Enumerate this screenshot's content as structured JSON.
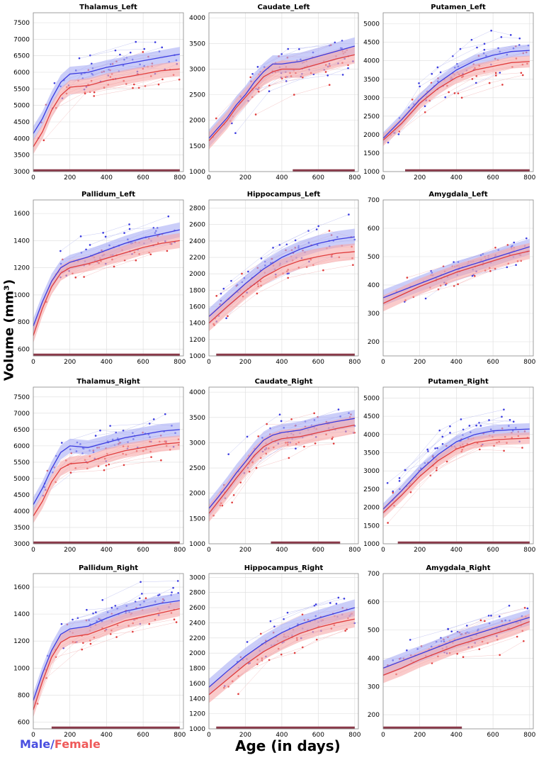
{
  "figure": {
    "ylabel": "Volume (mm³)",
    "xlabel": "Age (in days)",
    "legend": {
      "male": "Male",
      "sep": "/",
      "female": "Female"
    }
  },
  "colors": {
    "male": "#3b3be0",
    "male_band": "#a9aef5",
    "female": "#e03c3c",
    "female_band": "#f7a8a8",
    "significance_bar": "#8a3a4a",
    "grid": "#dcdcdc",
    "axis": "#888888"
  },
  "chart_data": [
    {
      "type": "line",
      "title": "Thalamus_Left",
      "xlim": [
        0,
        820
      ],
      "ylim": [
        3000,
        7800
      ],
      "xticks": [
        0,
        200,
        400,
        600,
        800
      ],
      "yticks": [
        3000,
        3500,
        4000,
        4500,
        5000,
        5500,
        6000,
        6500,
        7000,
        7500
      ],
      "x": [
        0,
        50,
        100,
        150,
        200,
        300,
        400,
        500,
        600,
        700,
        800
      ],
      "series": [
        {
          "name": "Male",
          "values": [
            4150,
            4600,
            5200,
            5700,
            5950,
            6000,
            6150,
            6250,
            6350,
            6450,
            6550
          ],
          "band": 220
        },
        {
          "name": "Female",
          "values": [
            3750,
            4200,
            4850,
            5300,
            5550,
            5600,
            5750,
            5850,
            5950,
            6050,
            6100
          ],
          "band": 220
        }
      ],
      "significance": [
        0,
        800
      ],
      "seed": 11
    },
    {
      "type": "line",
      "title": "Caudate_Left",
      "xlim": [
        0,
        820
      ],
      "ylim": [
        1000,
        4100
      ],
      "xticks": [
        0,
        200,
        400,
        600,
        800
      ],
      "yticks": [
        1000,
        1500,
        2000,
        2500,
        3000,
        3500,
        4000
      ],
      "x": [
        0,
        50,
        100,
        150,
        200,
        250,
        300,
        350,
        400,
        500,
        600,
        700,
        800
      ],
      "series": [
        {
          "name": "Male",
          "values": [
            1650,
            1850,
            2050,
            2300,
            2500,
            2750,
            2950,
            3100,
            3100,
            3150,
            3250,
            3350,
            3450
          ],
          "band": 170
        },
        {
          "name": "Female",
          "values": [
            1600,
            1800,
            2000,
            2250,
            2450,
            2650,
            2850,
            2950,
            3000,
            3000,
            3100,
            3200,
            3280
          ],
          "band": 170
        }
      ],
      "significance": [
        460,
        800
      ],
      "seed": 23
    },
    {
      "type": "line",
      "title": "Putamen_Left",
      "xlim": [
        0,
        820
      ],
      "ylim": [
        1000,
        5300
      ],
      "xticks": [
        0,
        200,
        400,
        600,
        800
      ],
      "yticks": [
        1000,
        1500,
        2000,
        2500,
        3000,
        3500,
        4000,
        4500,
        5000
      ],
      "x": [
        0,
        100,
        200,
        300,
        400,
        500,
        600,
        700,
        800
      ],
      "series": [
        {
          "name": "Male",
          "values": [
            1900,
            2400,
            2950,
            3400,
            3750,
            4000,
            4150,
            4250,
            4280
          ],
          "band": 160
        },
        {
          "name": "Female",
          "values": [
            1850,
            2300,
            2850,
            3250,
            3550,
            3750,
            3850,
            3950,
            3980
          ],
          "band": 160
        }
      ],
      "significance": [
        120,
        800
      ],
      "seed": 37
    },
    {
      "type": "line",
      "title": "Pallidum_Left",
      "xlim": [
        0,
        820
      ],
      "ylim": [
        550,
        1700
      ],
      "xticks": [
        0,
        200,
        400,
        600,
        800
      ],
      "yticks": [
        600,
        800,
        1000,
        1200,
        1400,
        1600
      ],
      "x": [
        0,
        50,
        100,
        150,
        200,
        300,
        400,
        500,
        600,
        700,
        800
      ],
      "series": [
        {
          "name": "Male",
          "values": [
            770,
            950,
            1100,
            1200,
            1240,
            1280,
            1330,
            1380,
            1420,
            1450,
            1480
          ],
          "band": 55
        },
        {
          "name": "Female",
          "values": [
            700,
            900,
            1060,
            1160,
            1200,
            1230,
            1270,
            1310,
            1350,
            1380,
            1400
          ],
          "band": 55
        }
      ],
      "significance": [
        0,
        800
      ],
      "seed": 41
    },
    {
      "type": "line",
      "title": "Hippocampus_Left",
      "xlim": [
        0,
        820
      ],
      "ylim": [
        1000,
        2900
      ],
      "xticks": [
        0,
        200,
        400,
        600,
        800
      ],
      "yticks": [
        1000,
        1200,
        1400,
        1600,
        1800,
        2000,
        2200,
        2400,
        2600,
        2800
      ],
      "x": [
        0,
        100,
        200,
        300,
        400,
        500,
        600,
        700,
        800
      ],
      "series": [
        {
          "name": "Male",
          "values": [
            1480,
            1680,
            1880,
            2060,
            2200,
            2300,
            2370,
            2420,
            2450
          ],
          "band": 100
        },
        {
          "name": "Female",
          "values": [
            1400,
            1600,
            1790,
            1960,
            2080,
            2160,
            2210,
            2250,
            2270
          ],
          "band": 100
        }
      ],
      "significance": [
        40,
        800
      ],
      "seed": 53
    },
    {
      "type": "line",
      "title": "Amygdala_Left",
      "xlim": [
        0,
        820
      ],
      "ylim": [
        150,
        700
      ],
      "xticks": [
        0,
        200,
        400,
        600,
        800
      ],
      "yticks": [
        200,
        300,
        400,
        500,
        600,
        700
      ],
      "x": [
        0,
        100,
        200,
        300,
        400,
        500,
        600,
        700,
        800
      ],
      "series": [
        {
          "name": "Male",
          "values": [
            355,
            380,
            405,
            430,
            455,
            475,
            495,
            515,
            535
          ],
          "band": 28
        },
        {
          "name": "Female",
          "values": [
            335,
            365,
            395,
            420,
            445,
            465,
            485,
            505,
            520
          ],
          "band": 28
        }
      ],
      "significance": null,
      "seed": 61
    },
    {
      "type": "line",
      "title": "Thalamus_Right",
      "xlim": [
        0,
        820
      ],
      "ylim": [
        3000,
        7800
      ],
      "xticks": [
        0,
        200,
        400,
        600,
        800
      ],
      "yticks": [
        3000,
        3500,
        4000,
        4500,
        5000,
        5500,
        6000,
        6500,
        7000,
        7500
      ],
      "x": [
        0,
        50,
        100,
        150,
        200,
        300,
        400,
        500,
        600,
        700,
        800
      ],
      "series": [
        {
          "name": "Male",
          "values": [
            4200,
            4700,
            5300,
            5800,
            6000,
            5950,
            6100,
            6250,
            6350,
            6450,
            6500
          ],
          "band": 220
        },
        {
          "name": "Female",
          "values": [
            3850,
            4300,
            4900,
            5300,
            5450,
            5500,
            5700,
            5850,
            5950,
            6050,
            6100
          ],
          "band": 220
        }
      ],
      "significance": [
        0,
        800
      ],
      "seed": 71
    },
    {
      "type": "line",
      "title": "Caudate_Right",
      "xlim": [
        0,
        820
      ],
      "ylim": [
        1000,
        4100
      ],
      "xticks": [
        0,
        200,
        400,
        600,
        800
      ],
      "yticks": [
        1000,
        1500,
        2000,
        2500,
        3000,
        3500,
        4000
      ],
      "x": [
        0,
        50,
        100,
        150,
        200,
        250,
        300,
        350,
        400,
        500,
        600,
        700,
        800
      ],
      "series": [
        {
          "name": "Male",
          "values": [
            1700,
            1920,
            2150,
            2400,
            2620,
            2850,
            3050,
            3150,
            3200,
            3250,
            3350,
            3420,
            3480
          ],
          "band": 170
        },
        {
          "name": "Female",
          "values": [
            1600,
            1830,
            2060,
            2300,
            2520,
            2750,
            2920,
            3020,
            3080,
            3120,
            3200,
            3280,
            3350
          ],
          "band": 170
        }
      ],
      "significance": [
        340,
        720
      ],
      "seed": 83
    },
    {
      "type": "line",
      "title": "Putamen_Right",
      "xlim": [
        0,
        820
      ],
      "ylim": [
        1000,
        5300
      ],
      "xticks": [
        0,
        200,
        400,
        600,
        800
      ],
      "yticks": [
        1000,
        1500,
        2000,
        2500,
        3000,
        3500,
        4000,
        4500,
        5000
      ],
      "x": [
        0,
        100,
        200,
        300,
        400,
        500,
        600,
        700,
        800
      ],
      "series": [
        {
          "name": "Male",
          "values": [
            1950,
            2450,
            3000,
            3450,
            3800,
            4000,
            4100,
            4130,
            4150
          ],
          "band": 160
        },
        {
          "name": "Female",
          "values": [
            1850,
            2330,
            2850,
            3280,
            3600,
            3780,
            3850,
            3880,
            3900
          ],
          "band": 160
        }
      ],
      "significance": [
        80,
        800
      ],
      "seed": 97
    },
    {
      "type": "line",
      "title": "Pallidum_Right",
      "xlim": [
        0,
        820
      ],
      "ylim": [
        550,
        1700
      ],
      "xticks": [
        0,
        200,
        400,
        600,
        800
      ],
      "yticks": [
        600,
        800,
        1000,
        1200,
        1400,
        1600
      ],
      "x": [
        0,
        50,
        100,
        150,
        200,
        300,
        400,
        500,
        600,
        700,
        800
      ],
      "series": [
        {
          "name": "Male",
          "values": [
            760,
            960,
            1130,
            1250,
            1290,
            1310,
            1370,
            1420,
            1450,
            1480,
            1500
          ],
          "band": 55
        },
        {
          "name": "Female",
          "values": [
            690,
            900,
            1080,
            1190,
            1230,
            1250,
            1300,
            1350,
            1380,
            1410,
            1440
          ],
          "band": 55
        }
      ],
      "significance": [
        100,
        800
      ],
      "seed": 103
    },
    {
      "type": "line",
      "title": "Hippocampus_Right",
      "xlim": [
        0,
        820
      ],
      "ylim": [
        1000,
        3050
      ],
      "xticks": [
        0,
        200,
        400,
        600,
        800
      ],
      "yticks": [
        1000,
        1200,
        1400,
        1600,
        1800,
        2000,
        2200,
        2400,
        2600,
        2800,
        3000
      ],
      "x": [
        0,
        100,
        200,
        300,
        400,
        500,
        600,
        700,
        800
      ],
      "series": [
        {
          "name": "Male",
          "values": [
            1550,
            1760,
            1960,
            2130,
            2270,
            2380,
            2460,
            2530,
            2600
          ],
          "band": 110
        },
        {
          "name": "Female",
          "values": [
            1450,
            1650,
            1850,
            2020,
            2150,
            2260,
            2340,
            2400,
            2450
          ],
          "band": 110
        }
      ],
      "significance": [
        40,
        800
      ],
      "seed": 109
    },
    {
      "type": "line",
      "title": "Amygdala_Right",
      "xlim": [
        0,
        820
      ],
      "ylim": [
        150,
        700
      ],
      "xticks": [
        0,
        200,
        400,
        600,
        800
      ],
      "yticks": [
        200,
        300,
        400,
        500,
        600,
        700
      ],
      "x": [
        0,
        100,
        200,
        300,
        400,
        500,
        600,
        700,
        800
      ],
      "series": [
        {
          "name": "Male",
          "values": [
            365,
            390,
            415,
            440,
            465,
            485,
            505,
            525,
            545
          ],
          "band": 28
        },
        {
          "name": "Female",
          "values": [
            340,
            365,
            395,
            420,
            445,
            465,
            485,
            505,
            530
          ],
          "band": 28
        }
      ],
      "significance": [
        0,
        430
      ],
      "seed": 127
    }
  ]
}
